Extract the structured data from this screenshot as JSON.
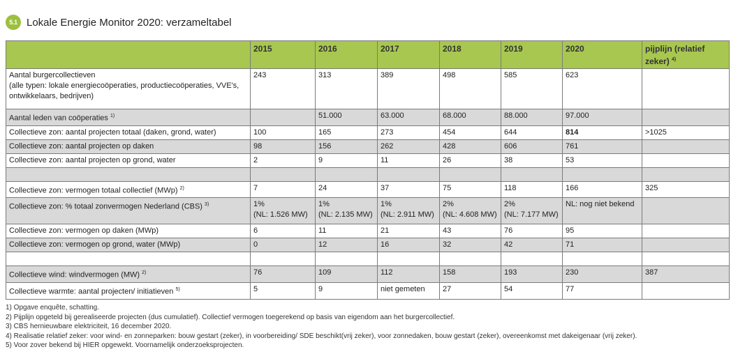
{
  "header": {
    "badge": "5.1",
    "title": "Lokale Energie Monitor 2020: verzameltabel"
  },
  "table": {
    "columns": [
      "",
      "2015",
      "2016",
      "2017",
      "2018",
      "2019",
      "2020",
      "pijplijn (relatief zeker)"
    ],
    "pipeline_sup": "4)",
    "rows": [
      {
        "shade": false,
        "label_lines": [
          "Aantal burgercollectieven",
          "(alle typen: lokale energiecoöperaties, productiecoöperaties, VVE's,",
          "ontwikkelaars, bedrijven)"
        ],
        "sup": "",
        "cells": [
          [
            "243"
          ],
          [
            "313"
          ],
          [
            "389"
          ],
          [
            "498"
          ],
          [
            "585"
          ],
          [
            "623"
          ],
          [
            ""
          ]
        ]
      },
      {
        "shade": true,
        "label_lines": [
          "Aantal leden van coöperaties"
        ],
        "sup": "1)",
        "cells": [
          [
            ""
          ],
          [
            "51.000"
          ],
          [
            "63.000"
          ],
          [
            "68.000"
          ],
          [
            "88.000"
          ],
          [
            "97.000"
          ],
          [
            ""
          ]
        ]
      },
      {
        "shade": false,
        "label_lines": [
          "Collectieve zon: aantal projecten totaal  (daken, grond, water)"
        ],
        "sup": "",
        "cells": [
          [
            "100"
          ],
          [
            "165"
          ],
          [
            "273"
          ],
          [
            "454"
          ],
          [
            "644"
          ],
          [
            "814"
          ],
          [
            ">1025"
          ]
        ],
        "bold_cell": 5
      },
      {
        "shade": true,
        "label_lines": [
          "Collectieve zon: aantal projecten op daken"
        ],
        "sup": "",
        "cells": [
          [
            "98"
          ],
          [
            "156"
          ],
          [
            "262"
          ],
          [
            "428"
          ],
          [
            "606"
          ],
          [
            "761"
          ],
          [
            ""
          ]
        ]
      },
      {
        "shade": false,
        "label_lines": [
          "Collectieve zon: aantal projecten op grond, water"
        ],
        "sup": "",
        "cells": [
          [
            "2"
          ],
          [
            "9"
          ],
          [
            "11"
          ],
          [
            "26"
          ],
          [
            "38"
          ],
          [
            "53"
          ],
          [
            ""
          ]
        ]
      },
      {
        "shade": true,
        "label_lines": [
          ""
        ],
        "sup": "",
        "cells": [
          [
            ""
          ],
          [
            ""
          ],
          [
            ""
          ],
          [
            ""
          ],
          [
            ""
          ],
          [
            ""
          ],
          [
            ""
          ]
        ]
      },
      {
        "shade": false,
        "label_lines": [
          "Collectieve zon: vermogen totaal collectief (MWp)"
        ],
        "sup": "2)",
        "cells": [
          [
            "7"
          ],
          [
            "24"
          ],
          [
            "37"
          ],
          [
            "75"
          ],
          [
            "118"
          ],
          [
            "166"
          ],
          [
            "325"
          ]
        ]
      },
      {
        "shade": true,
        "label_lines": [
          "Collectieve zon: % totaal zonvermogen Nederland (CBS)"
        ],
        "sup": "3)",
        "cells": [
          [
            "1%",
            "(NL: 1.526 MW)"
          ],
          [
            "1%",
            "(NL: 2.135 MW)"
          ],
          [
            "1%",
            "(NL: 2.911 MW)"
          ],
          [
            "2%",
            "(NL: 4.608 MW)"
          ],
          [
            "2%",
            "(NL: 7.177 MW)"
          ],
          [
            "NL: nog niet bekend"
          ],
          [
            ""
          ]
        ]
      },
      {
        "shade": false,
        "label_lines": [
          "Collectieve zon: vermogen op daken (MWp)"
        ],
        "sup": "",
        "cells": [
          [
            "6"
          ],
          [
            "11"
          ],
          [
            "21"
          ],
          [
            "43"
          ],
          [
            "76"
          ],
          [
            "95"
          ],
          [
            ""
          ]
        ]
      },
      {
        "shade": true,
        "label_lines": [
          "Collectieve zon: vermogen op grond, water (MWp)"
        ],
        "sup": "",
        "cells": [
          [
            "0"
          ],
          [
            "12"
          ],
          [
            "16"
          ],
          [
            "32"
          ],
          [
            "42"
          ],
          [
            "71"
          ],
          [
            ""
          ]
        ]
      },
      {
        "shade": false,
        "label_lines": [
          ""
        ],
        "sup": "",
        "cells": [
          [
            ""
          ],
          [
            ""
          ],
          [
            ""
          ],
          [
            ""
          ],
          [
            ""
          ],
          [
            ""
          ],
          [
            ""
          ]
        ]
      },
      {
        "shade": true,
        "label_lines": [
          "Collectieve wind: windvermogen (MW)"
        ],
        "sup": "2)",
        "cells": [
          [
            "76"
          ],
          [
            "109"
          ],
          [
            "112"
          ],
          [
            "158"
          ],
          [
            "193"
          ],
          [
            "230"
          ],
          [
            "387"
          ]
        ]
      },
      {
        "shade": false,
        "label_lines": [
          "Collectieve warmte: aantal projecten/ initiatieven"
        ],
        "sup": "5)",
        "cells": [
          [
            "5"
          ],
          [
            "9"
          ],
          [
            "niet gemeten"
          ],
          [
            "27"
          ],
          [
            "54"
          ],
          [
            "77"
          ],
          [
            ""
          ]
        ]
      }
    ]
  },
  "footnotes": [
    "1) Opgave enquête, schatting.",
    "2) Pijplijn opgeteld bij gerealiseerde projecten (dus cumulatief). Collectief vermogen toegerekend op basis van eigendom aan het burgercollectief.",
    "3) CBS hernieuwbare elektriciteit, 16 december 2020.",
    "4) Realisatie relatief zeker: voor wind- en zonneparken: bouw gestart (zeker), in voorbereiding/ SDE beschikt(vrij zeker), voor zonnedaken, bouw gestart (zeker), overeenkomst met dakeigenaar (vrij zeker).",
    "5) Voor zover bekend bij HIER opgewekt. Voornamelijk onderzoeksprojecten."
  ]
}
